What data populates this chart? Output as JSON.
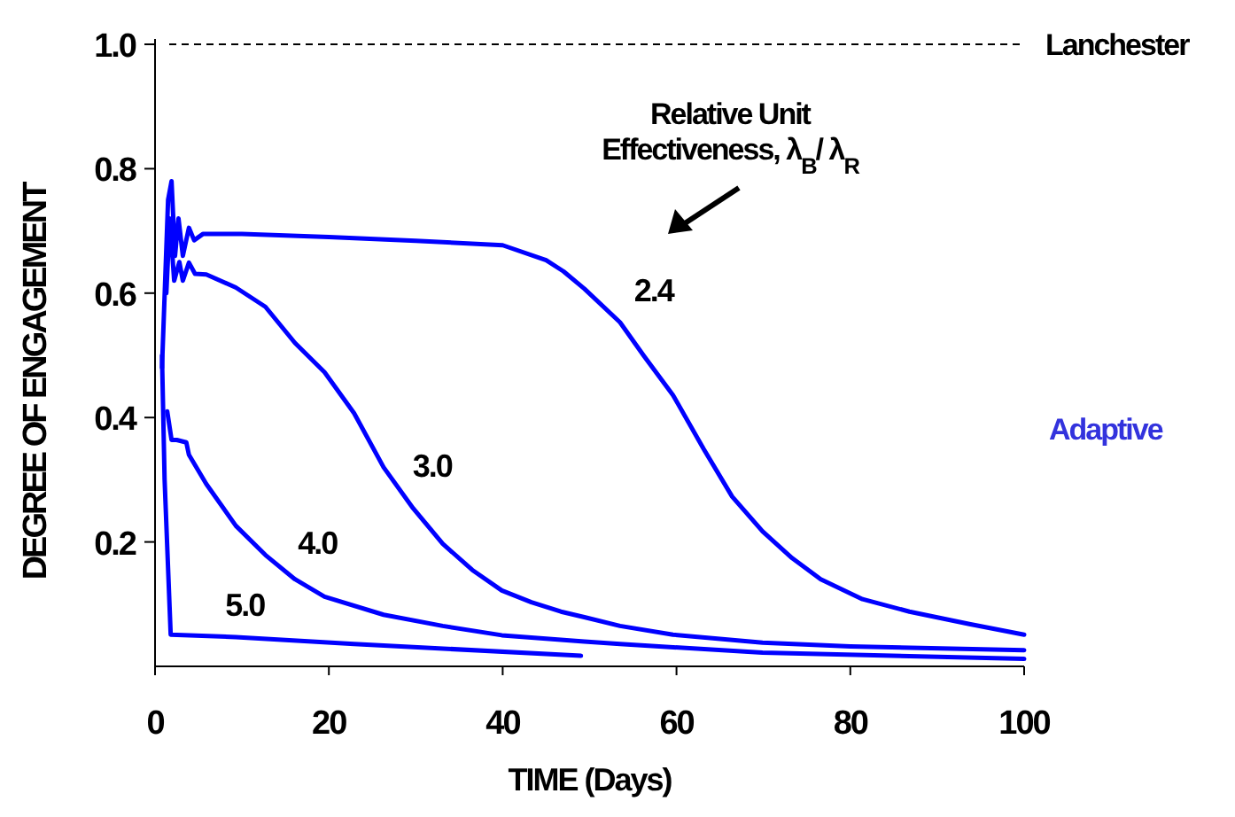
{
  "chart_data": {
    "type": "line",
    "xlabel": "TIME (Days)",
    "ylabel": "DEGREE OF ENGAGEMENT",
    "xlim": [
      0,
      100
    ],
    "xticks": [
      0,
      20,
      40,
      60,
      80,
      100
    ],
    "ylim": [
      0,
      1
    ],
    "yticks": [
      0.2,
      0.4,
      0.6,
      0.8,
      {
        "value": 1,
        "label": "1.0"
      }
    ],
    "grid": false,
    "marker": "none",
    "line_style": "solid",
    "series": [
      {
        "name": "2.4",
        "color": "#0000ff",
        "x": [
          0.8,
          1.5,
          1.9,
          2.3,
          2.7,
          3.2,
          3.9,
          4.5,
          5.5,
          10,
          20,
          30,
          40,
          45,
          47,
          49.4,
          53.5,
          56.2,
          59.6,
          63.1,
          66.4,
          69.9,
          73.3,
          76.6,
          81.4,
          86.8,
          93.7,
          100
        ],
        "values": [
          0.48,
          0.75,
          0.78,
          0.66,
          0.72,
          0.66,
          0.705,
          0.685,
          0.695,
          0.695,
          0.69,
          0.684,
          0.677,
          0.653,
          0.635,
          0.607,
          0.553,
          0.5,
          0.436,
          0.35,
          0.273,
          0.217,
          0.174,
          0.14,
          0.108,
          0.088,
          0.068,
          0.051
        ]
      },
      {
        "name": "3.0",
        "color": "#0000ff",
        "x": [
          1.3,
          1.7,
          2.2,
          2.8,
          3.2,
          3.9,
          4.6,
          5.9,
          9.3,
          12.7,
          16.1,
          19.5,
          22.9,
          26.3,
          29.7,
          33.1,
          36.5,
          39.9,
          43.3,
          46.7,
          49.4,
          53.5,
          59.6,
          69.9,
          80,
          100
        ],
        "values": [
          0.6,
          0.72,
          0.62,
          0.65,
          0.62,
          0.649,
          0.631,
          0.63,
          0.609,
          0.578,
          0.52,
          0.473,
          0.407,
          0.32,
          0.254,
          0.197,
          0.155,
          0.122,
          0.103,
          0.088,
          0.079,
          0.065,
          0.051,
          0.038,
          0.032,
          0.026
        ]
      },
      {
        "name": "4.0",
        "color": "#0000ff",
        "x": [
          1.4,
          1.9,
          2.5,
          3.6,
          3.9,
          5.9,
          9.3,
          12.7,
          16.1,
          19.5,
          26.3,
          33.1,
          39.9,
          49.4,
          53.5,
          69.9,
          100
        ],
        "values": [
          0.41,
          0.364,
          0.364,
          0.36,
          0.34,
          0.293,
          0.226,
          0.179,
          0.14,
          0.112,
          0.083,
          0.065,
          0.05,
          0.04,
          0.036,
          0.022,
          0.012
        ]
      },
      {
        "name": "5.0",
        "color": "#0000ff",
        "x": [
          0.8,
          1.1,
          1.8,
          9.3,
          22.9,
          49
        ],
        "values": [
          0.5,
          0.3,
          0.051,
          0.047,
          0.036,
          0.017
        ]
      }
    ],
    "ref_lines": [
      {
        "axis": "y",
        "value": 1,
        "label": "Lanchester",
        "color": "#000000",
        "line_style": "dashed"
      }
    ],
    "annotations": [
      "Relative Unit\nEffectiveness, λ$_{B}$/ λ$_{R}$",
      "Adaptive"
    ]
  }
}
